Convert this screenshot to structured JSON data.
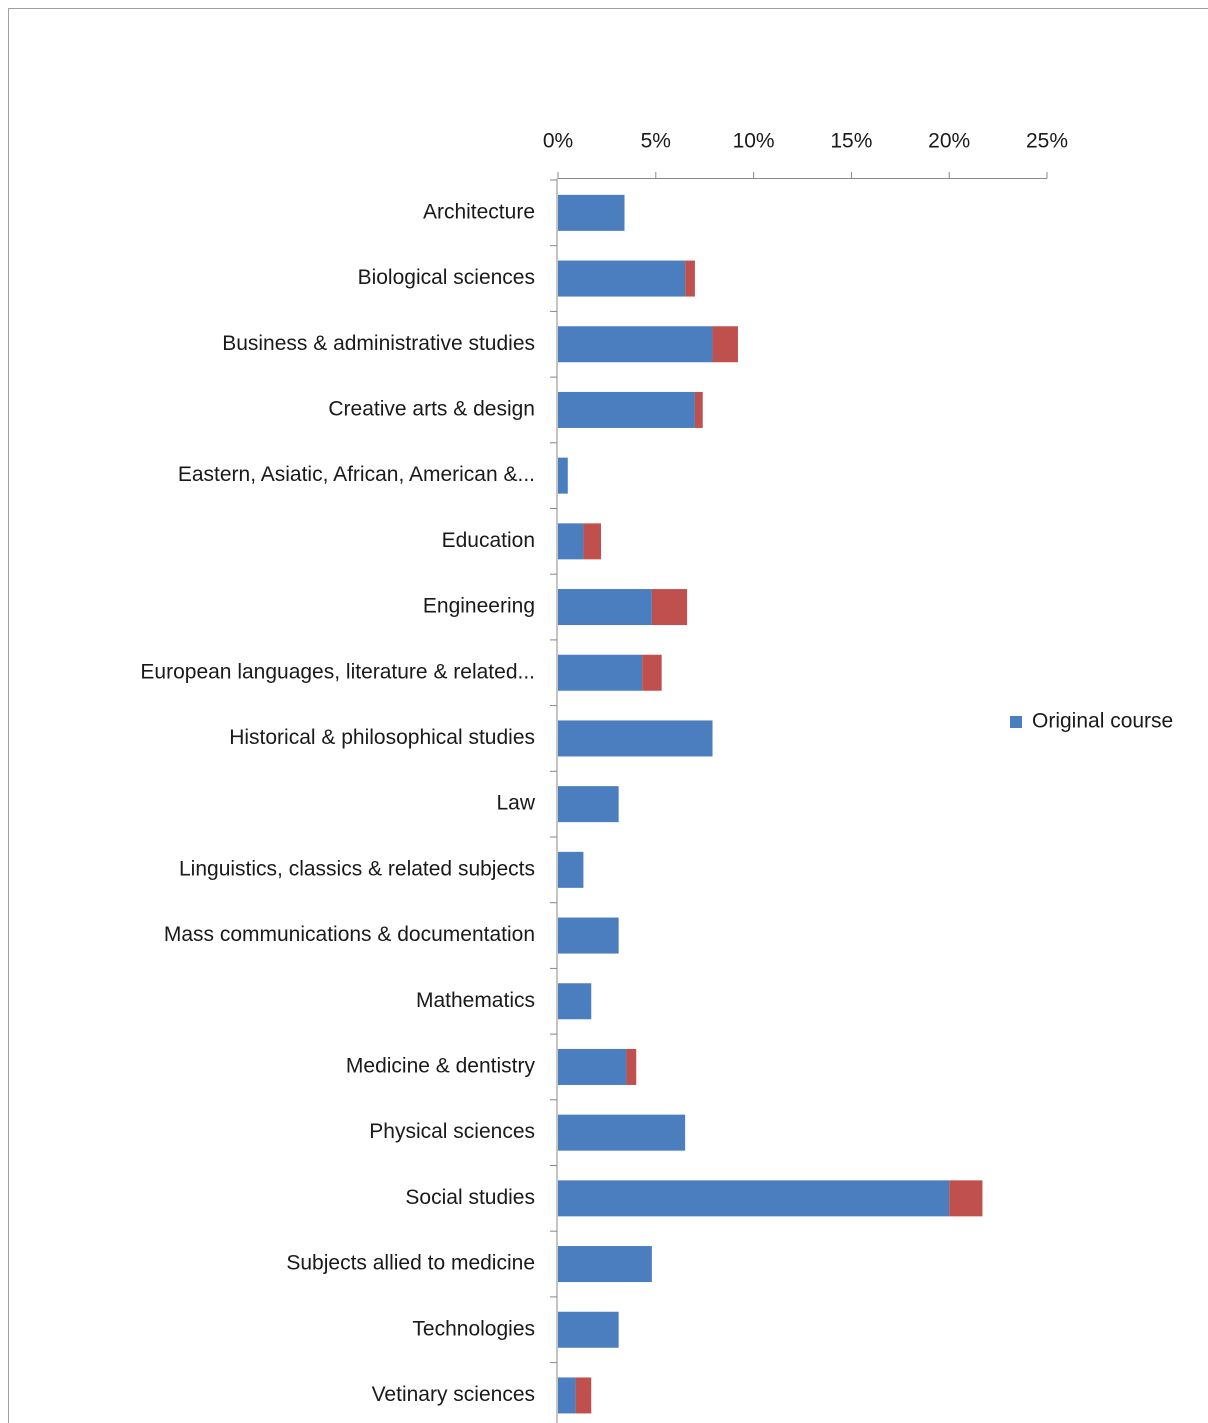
{
  "chart_data": {
    "type": "stacked-bar-horizontal",
    "categories": [
      "Architecture",
      "Biological sciences",
      "Business & administrative studies",
      "Creative arts & design",
      "Eastern, Asiatic, African, American &...",
      "Education",
      "Engineering",
      "European languages, literature & related...",
      "Historical & philosophical studies",
      "Law",
      "Linguistics, classics & related subjects",
      "Mass communications & documentation",
      "Mathematics",
      "Medicine & dentistry",
      "Physical sciences",
      "Social studies",
      "Subjects allied to medicine",
      "Technologies",
      "Vetinary sciences"
    ],
    "series": [
      {
        "name": "Original course",
        "color": "#4a7ebf",
        "values": [
          3.4,
          6.5,
          7.9,
          7.0,
          0.5,
          1.3,
          4.8,
          4.3,
          7.9,
          3.1,
          1.3,
          3.1,
          1.7,
          3.5,
          6.5,
          20.0,
          4.8,
          3.1,
          0.9
        ]
      },
      {
        "color": "#c0504d",
        "values": [
          0,
          0.5,
          1.3,
          0.4,
          0,
          0.9,
          1.8,
          1.0,
          0,
          0,
          0,
          0,
          0,
          0.5,
          0,
          1.7,
          0,
          0,
          0.8
        ]
      }
    ],
    "xlim": [
      0,
      25
    ],
    "xticks": [
      {
        "value": 0,
        "label": "0%"
      },
      {
        "value": 5,
        "label": "5%"
      },
      {
        "value": 10,
        "label": "10%"
      },
      {
        "value": 15,
        "label": "15%"
      },
      {
        "value": 20,
        "label": "20%"
      },
      {
        "value": 25,
        "label": "25%"
      }
    ],
    "legend": "right"
  }
}
